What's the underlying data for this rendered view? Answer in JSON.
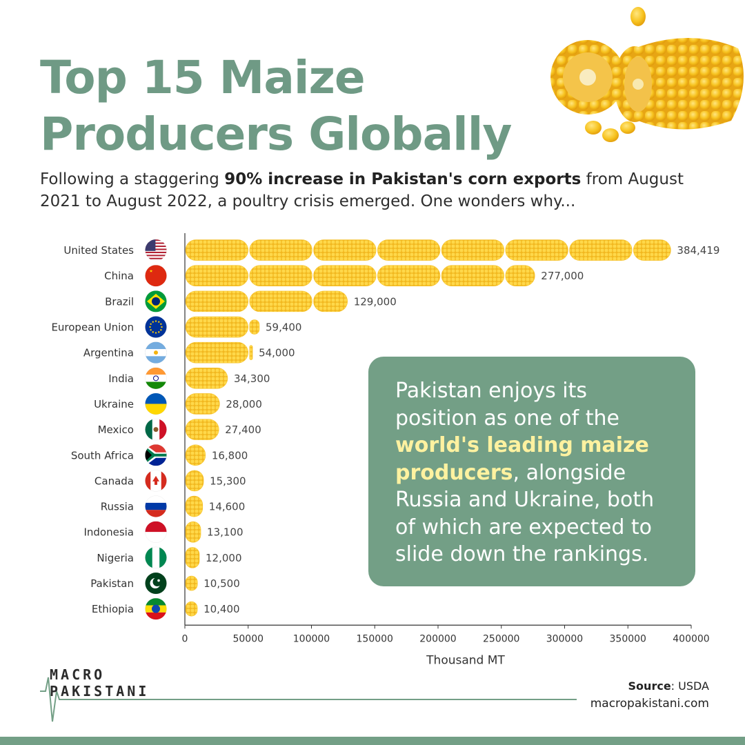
{
  "header": {
    "title_line1": "Top 15 Maize",
    "title_line2": "Producers Globally",
    "subtitle_pre": "Following a staggering ",
    "subtitle_bold": "90% increase in Pakistan's corn exports",
    "subtitle_post": " from August 2021 to August 2022, a poultry crisis emerged. One wonders why..."
  },
  "callout": {
    "pre": "Pakistan enjoys its position as one of the ",
    "highlight": "world's leading maize producers",
    "post": ", alongside Russia and Ukraine, both of which are expected to slide down the rankings."
  },
  "footer": {
    "logo_line1": "MACRO",
    "logo_line2": "PAKISTANI",
    "source_label": "Source",
    "source_value": ": USDA",
    "website": "macropakistani.com"
  },
  "colors": {
    "accent": "#739f86",
    "title": "#6f9a85",
    "corn": "#f6c431",
    "highlight": "#fff2a0"
  },
  "chart_data": {
    "type": "bar",
    "orientation": "horizontal",
    "categories": [
      "United States",
      "China",
      "Brazil",
      "European Union",
      "Argentina",
      "India",
      "Ukraine",
      "Mexico",
      "South Africa",
      "Canada",
      "Russia",
      "Indonesia",
      "Nigeria",
      "Pakistan",
      "Ethiopia"
    ],
    "values": [
      384419,
      277000,
      129000,
      59400,
      54000,
      34300,
      28000,
      27400,
      16800,
      15300,
      14600,
      13100,
      12000,
      10500,
      10400
    ],
    "value_labels": [
      "384,419",
      "277,000",
      "129,000",
      "59,400",
      "54,000",
      "34,300",
      "28,000",
      "27,400",
      "16,800",
      "15,300",
      "14,600",
      "13,100",
      "12,000",
      "10,500",
      "10,400"
    ],
    "xlabel": "Thousand MT",
    "ylabel": "",
    "xlim": [
      0,
      400000
    ],
    "xticks": [
      0,
      50000,
      100000,
      150000,
      200000,
      250000,
      300000,
      350000,
      400000
    ],
    "xtick_labels": [
      "0",
      "50000",
      "100000",
      "150000",
      "200000",
      "250000",
      "300000",
      "350000",
      "400000"
    ],
    "flags": [
      "flag-us",
      "flag-cn",
      "flag-br",
      "flag-eu",
      "flag-ar",
      "flag-in",
      "flag-ua",
      "flag-mx",
      "flag-za",
      "flag-ca",
      "flag-ru",
      "flag-id",
      "flag-ng",
      "flag-pk",
      "flag-et"
    ],
    "grid": false,
    "legend": "none"
  }
}
